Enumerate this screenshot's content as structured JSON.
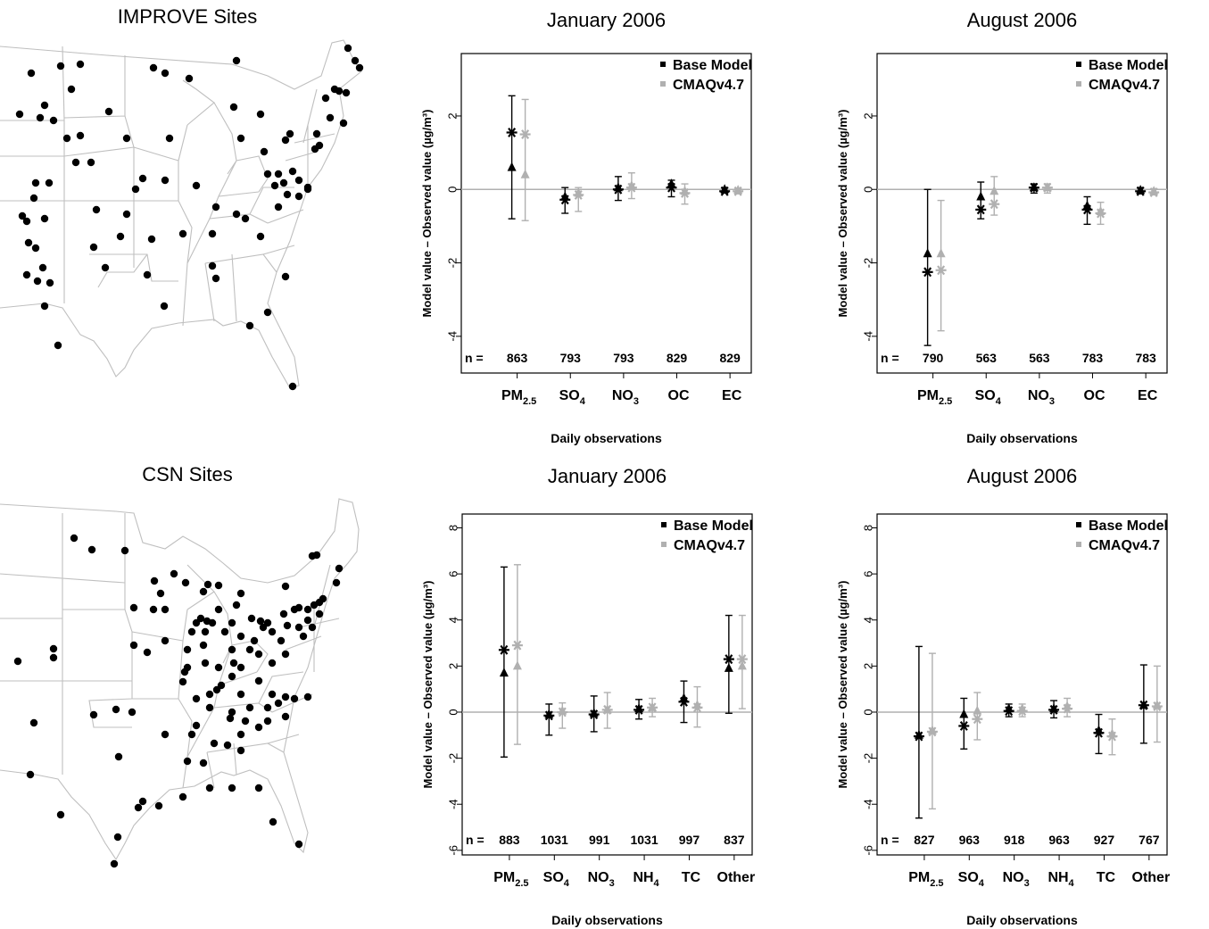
{
  "panels": {
    "improve_title": "IMPROVE Sites",
    "csn_title": "CSN Sites"
  },
  "chart_data": [
    {
      "type": "scatter",
      "title": "January 2006",
      "xlabel": "Daily observations",
      "ylabel": "Model value – Observed value (µg/m³)",
      "ylim": [
        -5,
        3.7
      ],
      "yticks": [
        "-4",
        "-2",
        "0",
        "2"
      ],
      "n_label": "n =",
      "categories": [
        "PM2.5",
        "SO4",
        "NO3",
        "OC",
        "EC"
      ],
      "n": [
        "863",
        "793",
        "793",
        "829",
        "829"
      ],
      "legend_position": "top-right",
      "series": [
        {
          "name": "Base Model",
          "color": "#000000",
          "median": [
            0.6,
            -0.2,
            0.05,
            0.15,
            0.0
          ],
          "mean": [
            1.55,
            -0.28,
            0.0,
            0.05,
            -0.05
          ],
          "low": [
            -0.8,
            -0.65,
            -0.3,
            -0.2,
            -0.1
          ],
          "high": [
            2.55,
            0.05,
            0.35,
            0.25,
            0.05
          ]
        },
        {
          "name": "CMAQv4.7",
          "color": "#b0b0b0",
          "median": [
            0.4,
            -0.1,
            0.1,
            -0.05,
            -0.02
          ],
          "mean": [
            1.5,
            -0.15,
            0.05,
            -0.1,
            -0.05
          ],
          "low": [
            -0.85,
            -0.6,
            -0.25,
            -0.4,
            -0.12
          ],
          "high": [
            2.45,
            0.05,
            0.45,
            0.15,
            0.02
          ]
        }
      ]
    },
    {
      "type": "scatter",
      "title": "August 2006",
      "xlabel": "Daily observations",
      "ylabel": "Model value – Observed value (µg/m³)",
      "ylim": [
        -5,
        3.7
      ],
      "yticks": [
        "-4",
        "-2",
        "0",
        "2"
      ],
      "n_label": "n =",
      "categories": [
        "PM2.5",
        "SO4",
        "NO3",
        "OC",
        "EC"
      ],
      "n": [
        "790",
        "563",
        "563",
        "783",
        "783"
      ],
      "legend_position": "top-right",
      "series": [
        {
          "name": "Base Model",
          "color": "#000000",
          "median": [
            -1.75,
            -0.2,
            0.05,
            -0.45,
            -0.02
          ],
          "mean": [
            -2.25,
            -0.55,
            0.05,
            -0.55,
            -0.05
          ],
          "low": [
            -4.25,
            -0.8,
            -0.1,
            -0.95,
            -0.12
          ],
          "high": [
            0.0,
            0.2,
            0.15,
            -0.2,
            0.05
          ]
        },
        {
          "name": "CMAQv4.7",
          "color": "#b0b0b0",
          "median": [
            -1.75,
            -0.05,
            0.05,
            -0.6,
            -0.05
          ],
          "mean": [
            -2.2,
            -0.4,
            0.05,
            -0.65,
            -0.08
          ],
          "low": [
            -3.85,
            -0.7,
            -0.1,
            -0.95,
            -0.15
          ],
          "high": [
            -0.3,
            0.35,
            0.15,
            -0.35,
            0.02
          ]
        }
      ]
    },
    {
      "type": "scatter",
      "title": "January 2006",
      "xlabel": "Daily observations",
      "ylabel": "Model value – Observed value (µg/m³)",
      "ylim": [
        -6.2,
        8.6
      ],
      "yticks": [
        "-6",
        "-4",
        "-2",
        "0",
        "2",
        "4",
        "6",
        "8"
      ],
      "n_label": "n =",
      "categories": [
        "PM2.5",
        "SO4",
        "NO3",
        "NH4",
        "TC",
        "Other"
      ],
      "n": [
        "883",
        "1031",
        "991",
        "1031",
        "997",
        "837"
      ],
      "legend_position": "top-right",
      "series": [
        {
          "name": "Base Model",
          "color": "#000000",
          "median": [
            1.7,
            -0.1,
            -0.05,
            0.15,
            0.6,
            1.9
          ],
          "mean": [
            2.7,
            -0.15,
            -0.1,
            0.1,
            0.45,
            2.3
          ],
          "low": [
            -1.95,
            -1.0,
            -0.85,
            -0.3,
            -0.45,
            -0.05
          ],
          "high": [
            6.3,
            0.35,
            0.7,
            0.55,
            1.35,
            4.2
          ]
        },
        {
          "name": "CMAQv4.7",
          "color": "#b0b0b0",
          "median": [
            2.0,
            0.05,
            0.1,
            0.2,
            0.3,
            2.0
          ],
          "mean": [
            2.9,
            0.0,
            0.1,
            0.2,
            0.2,
            2.3
          ],
          "low": [
            -1.4,
            -0.7,
            -0.7,
            -0.2,
            -0.65,
            0.15
          ],
          "high": [
            6.4,
            0.4,
            0.85,
            0.6,
            1.1,
            4.2
          ]
        }
      ]
    },
    {
      "type": "scatter",
      "title": "August 2006",
      "xlabel": "Daily observations",
      "ylabel": "Model value – Observed value (µg/m³)",
      "ylim": [
        -6.2,
        8.6
      ],
      "yticks": [
        "-6",
        "-4",
        "-2",
        "0",
        "2",
        "4",
        "6",
        "8"
      ],
      "n_label": "n =",
      "categories": [
        "PM2.5",
        "SO4",
        "NO3",
        "NH4",
        "TC",
        "Other"
      ],
      "n": [
        "827",
        "963",
        "918",
        "963",
        "927",
        "767"
      ],
      "legend_position": "top-right",
      "series": [
        {
          "name": "Base Model",
          "color": "#000000",
          "median": [
            -1.0,
            -0.1,
            0.15,
            0.15,
            -0.8,
            0.3
          ],
          "mean": [
            -1.05,
            -0.6,
            0.05,
            0.1,
            -0.9,
            0.3
          ],
          "low": [
            -4.6,
            -1.6,
            -0.2,
            -0.25,
            -1.8,
            -1.35
          ],
          "high": [
            2.85,
            0.6,
            0.35,
            0.5,
            -0.1,
            2.05
          ]
        },
        {
          "name": "CMAQv4.7",
          "color": "#b0b0b0",
          "median": [
            -0.8,
            0.05,
            0.15,
            0.25,
            -0.95,
            0.3
          ],
          "mean": [
            -0.85,
            -0.3,
            0.05,
            0.15,
            -1.05,
            0.25
          ],
          "low": [
            -4.2,
            -1.2,
            -0.2,
            -0.2,
            -1.85,
            -1.3
          ],
          "high": [
            2.55,
            0.85,
            0.35,
            0.6,
            -0.3,
            2.0
          ]
        }
      ]
    }
  ]
}
